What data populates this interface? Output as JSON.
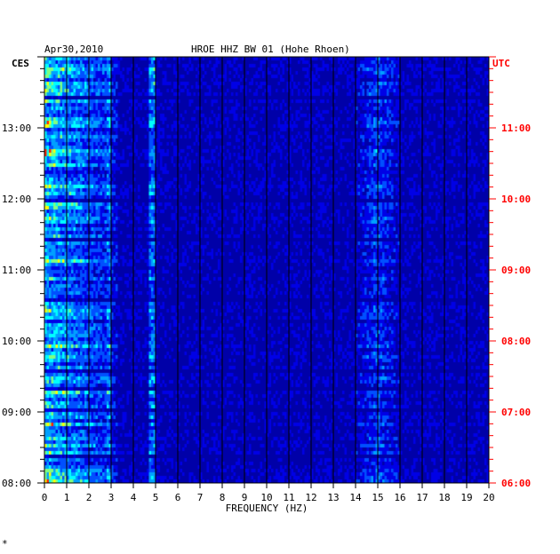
{
  "chart_data": {
    "type": "heatmap",
    "title": "HROE HHZ BW 01 (Hohe Rhoen)",
    "date": "Apr30,2010",
    "xlabel": "FREQUENCY (HZ)",
    "xlim": [
      0,
      20
    ],
    "x_ticks": [
      "0",
      "1",
      "2",
      "3",
      "4",
      "5",
      "6",
      "7",
      "8",
      "9",
      "10",
      "11",
      "12",
      "13",
      "14",
      "15",
      "16",
      "17",
      "18",
      "19",
      "20"
    ],
    "left_axis_label": "CES",
    "right_axis_label": "UTC",
    "left_ticks": [
      {
        "label": "08:00",
        "hour": 8
      },
      {
        "label": "09:00",
        "hour": 9
      },
      {
        "label": "10:00",
        "hour": 10
      },
      {
        "label": "11:00",
        "hour": 11
      },
      {
        "label": "12:00",
        "hour": 12
      },
      {
        "label": "13:00",
        "hour": 13
      }
    ],
    "right_ticks": [
      {
        "label": "06:00",
        "hour": 6
      },
      {
        "label": "07:00",
        "hour": 7
      },
      {
        "label": "08:00",
        "hour": 8
      },
      {
        "label": "09:00",
        "hour": 9
      },
      {
        "label": "10:00",
        "hour": 10
      },
      {
        "label": "11:00",
        "hour": 11
      }
    ],
    "ylim_hours_ces": [
      8.0,
      14.0
    ],
    "colormap": [
      "#00008b",
      "#0000ff",
      "#0080ff",
      "#00ffff",
      "#ffff00",
      "#ff0000"
    ],
    "bands_hz": [
      {
        "range": [
          0,
          3
        ],
        "intensity": "high"
      },
      {
        "range": [
          2.8,
          3.2
        ],
        "intensity": "medium"
      },
      {
        "range": [
          4.8,
          5.0
        ],
        "intensity": "medium-narrow"
      },
      {
        "range": [
          14,
          16
        ],
        "intensity": "medium"
      }
    ]
  },
  "colors": {
    "plot_background": "#0000c8",
    "grid": "#000000",
    "right_axis": "#ff0000",
    "left_axis": "#000000"
  },
  "footer_mark": "*"
}
